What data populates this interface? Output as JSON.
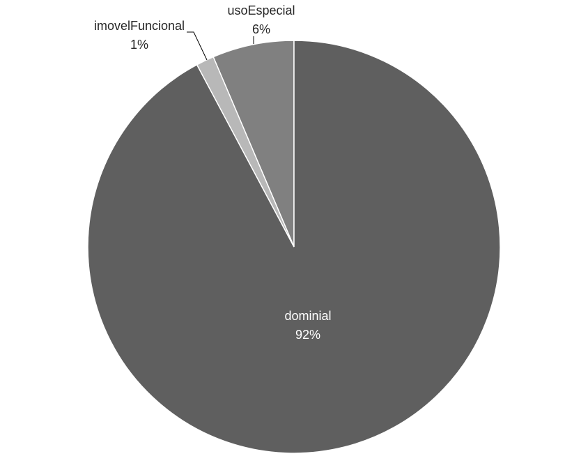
{
  "chart_data": {
    "type": "pie",
    "title": "",
    "slices": [
      {
        "label": "usoEspecial",
        "percent_label": "6%",
        "value": 6.4,
        "color": "#808080",
        "label_color": "#262626"
      },
      {
        "label": "dominial",
        "percent_label": "92%",
        "value": 92.2,
        "color": "#5f5f5f",
        "label_color": "#ffffff"
      },
      {
        "label": "imovelFuncional",
        "percent_label": "1%",
        "value": 1.4,
        "color": "#b8b8b8",
        "label_color": "#262626"
      }
    ],
    "legend": "none"
  }
}
